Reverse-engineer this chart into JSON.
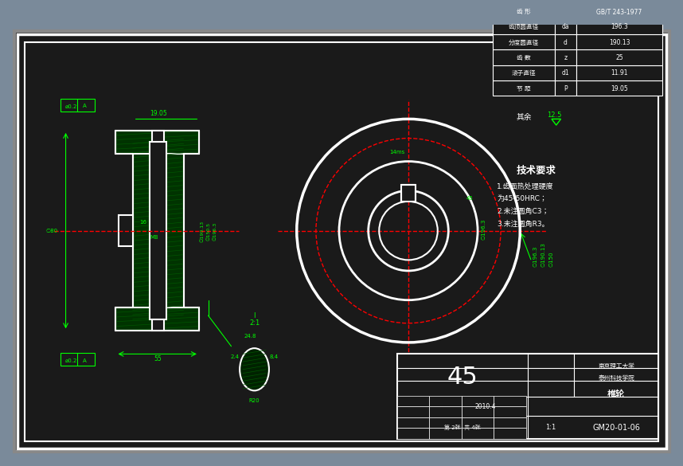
{
  "bg_color": "#1a1a1a",
  "outer_border_color": "#ffffff",
  "inner_border_color": "#ffffff",
  "line_color": "#ffffff",
  "green_color": "#00ff00",
  "red_color": "#ff0000",
  "hatch_color": "#00aa00",
  "title": "椎轮",
  "drawing_no": "GM20-01-06",
  "material": "45",
  "scale": "1:1",
  "university": "南京理工大学",
  "college": "泰州科技学院",
  "tech_req_title": "技术要求",
  "tech_req_1": "1.齿面热处理硬度",
  "tech_req_2": "为45-50HRC；",
  "tech_req_3": "2.未注圆角C3；",
  "tech_req_4": "3.未注圆角R3。",
  "param_title": "节 距",
  "param_p": "P",
  "param_p_val": "19.05",
  "param_da_title": "滚子直径",
  "param_da": "d1",
  "param_da_val": "11.91",
  "param_z_title": "齿 数",
  "param_z": "z",
  "param_z_val": "25",
  "param_d_title": "分度圆直径",
  "param_d": "d",
  "param_d_val": "190.13",
  "param_dc_title": "齿顶圆直径",
  "param_dc": "da",
  "param_dc_val": "196.3",
  "param_form_title": "齿 形",
  "param_form_val": "GB/T 243-1977",
  "other_note": "其余",
  "roughness_val": "12.5",
  "view_scale": "I  2:1",
  "page_info": "第 2张  共 4张",
  "date": "2010.4"
}
